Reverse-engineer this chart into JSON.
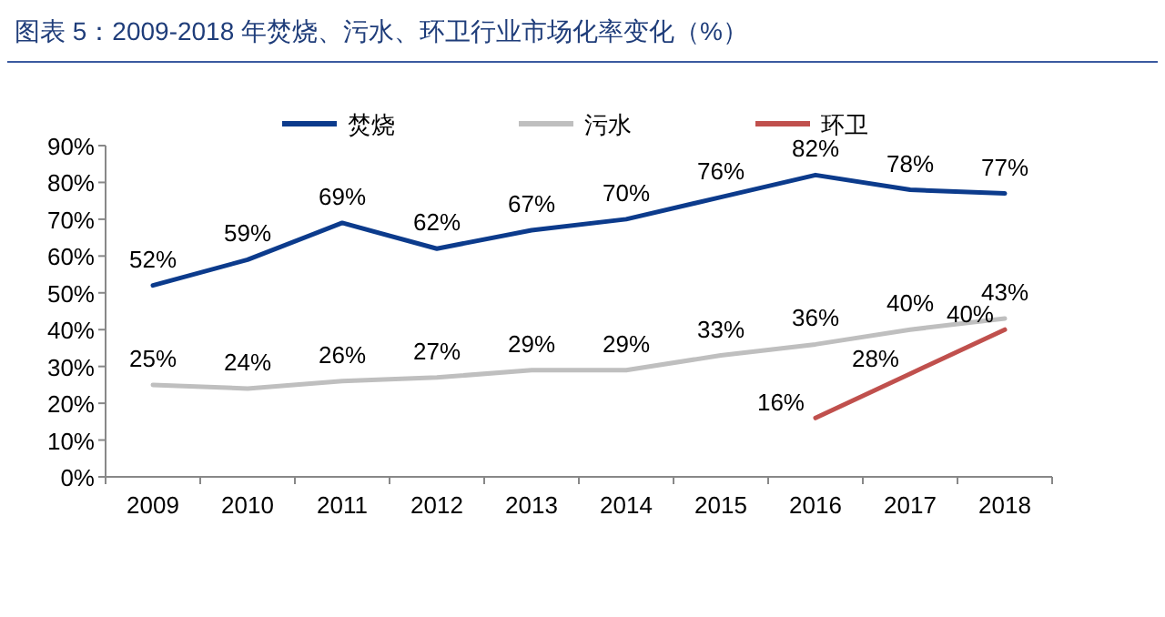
{
  "chart_data": {
    "type": "line",
    "title": "图表 5：2009-2018 年焚烧、污水、环卫行业市场化率变化（%）",
    "categories": [
      "2009",
      "2010",
      "2011",
      "2012",
      "2013",
      "2014",
      "2015",
      "2016",
      "2017",
      "2018"
    ],
    "series": [
      {
        "name": "焚烧",
        "color": "#0c3b8c",
        "values": [
          52,
          59,
          69,
          62,
          67,
          70,
          76,
          82,
          78,
          77
        ],
        "value_labels": [
          "52%",
          "59%",
          "69%",
          "62%",
          "67%",
          "70%",
          "76%",
          "82%",
          "78%",
          "77%"
        ]
      },
      {
        "name": "污水",
        "color": "#bfbfbf",
        "values": [
          25,
          24,
          26,
          27,
          29,
          29,
          33,
          36,
          40,
          43
        ],
        "value_labels": [
          "25%",
          "24%",
          "26%",
          "27%",
          "29%",
          "29%",
          "33%",
          "36%",
          "40%",
          "43%"
        ]
      },
      {
        "name": "环卫",
        "color": "#c0504d",
        "values": [
          null,
          null,
          null,
          null,
          null,
          null,
          null,
          16,
          28,
          40
        ],
        "value_labels": [
          null,
          null,
          null,
          null,
          null,
          null,
          null,
          "16%",
          "28%",
          "40%"
        ]
      }
    ],
    "ylim": [
      0,
      90
    ],
    "yticks": [
      {
        "value": 0,
        "label": "0%"
      },
      {
        "value": 10,
        "label": "10%"
      },
      {
        "value": 20,
        "label": "20%"
      },
      {
        "value": 30,
        "label": "30%"
      },
      {
        "value": 40,
        "label": "40%"
      },
      {
        "value": 50,
        "label": "50%"
      },
      {
        "value": 60,
        "label": "60%"
      },
      {
        "value": 70,
        "label": "70%"
      },
      {
        "value": 80,
        "label": "80%"
      },
      {
        "value": 90,
        "label": "90%"
      }
    ],
    "grid": false,
    "legend": "top",
    "marker": "none",
    "line_style": "solid"
  }
}
